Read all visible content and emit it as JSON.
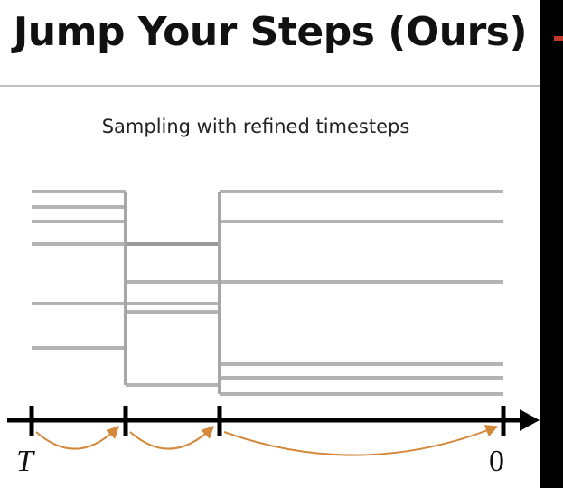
{
  "slide": {
    "title": "Jump Your Steps (Ours)",
    "subtitle": "Sampling with refined timesteps"
  },
  "timeline": {
    "start_label": "T",
    "end_label": "0",
    "axis_color": "#000000",
    "jump_arrow_color": "#d4883a",
    "step_line_color": "#b3b3b3",
    "tick_count": 4
  }
}
